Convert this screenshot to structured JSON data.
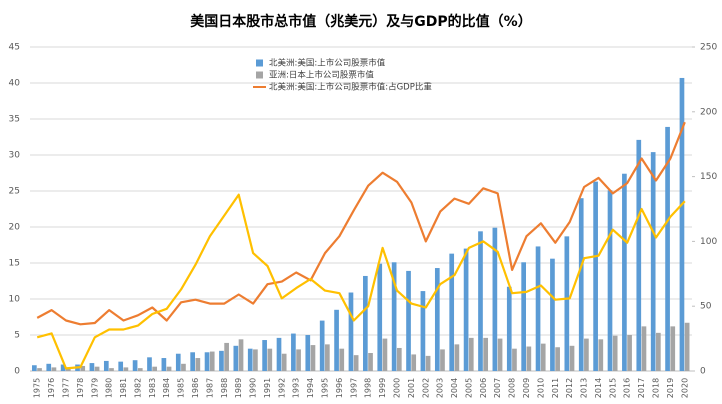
{
  "chart_data": {
    "type": "bar-line",
    "title": "美国日本股市总市值（兆美元）及与GDP的比值（%）",
    "categories": [
      "1975",
      "1976",
      "1977",
      "1978",
      "1979",
      "1980",
      "1981",
      "1982",
      "1983",
      "1984",
      "1985",
      "1986",
      "1987",
      "1988",
      "1989",
      "1990",
      "1991",
      "1992",
      "1993",
      "1994",
      "1995",
      "1996",
      "1997",
      "1998",
      "1999",
      "2000",
      "2001",
      "2002",
      "2003",
      "2004",
      "2005",
      "2006",
      "2007",
      "2008",
      "2009",
      "2010",
      "2011",
      "2012",
      "2013",
      "2014",
      "2015",
      "2016",
      "2017",
      "2018",
      "2019",
      "2020"
    ],
    "series": [
      {
        "name": "北美洲:美国:上市公司股票市值",
        "type": "bar",
        "color": "#5b9bd5",
        "values": [
          0.8,
          1.0,
          0.9,
          0.9,
          1.1,
          1.4,
          1.3,
          1.5,
          1.9,
          1.8,
          2.4,
          2.6,
          2.6,
          2.8,
          3.5,
          3.1,
          4.3,
          4.6,
          5.2,
          5.0,
          7.0,
          8.5,
          10.9,
          13.2,
          14.9,
          15.1,
          13.9,
          11.1,
          14.3,
          16.3,
          17.0,
          19.4,
          19.9,
          11.7,
          15.1,
          17.3,
          15.6,
          18.7,
          24.0,
          26.3,
          25.1,
          27.4,
          32.1,
          30.4,
          33.9,
          40.7
        ]
      },
      {
        "name": "亚洲:日本上市公司股票市值",
        "type": "bar",
        "color": "#a5a5a5",
        "values": [
          0.4,
          0.5,
          0.5,
          0.7,
          0.6,
          0.4,
          0.5,
          0.4,
          0.6,
          0.6,
          1.0,
          1.8,
          2.7,
          3.9,
          4.4,
          3.0,
          3.1,
          2.4,
          3.0,
          3.6,
          3.7,
          3.1,
          2.2,
          2.5,
          4.5,
          3.2,
          2.3,
          2.1,
          3.0,
          3.7,
          4.6,
          4.6,
          4.5,
          3.1,
          3.4,
          3.8,
          3.3,
          3.5,
          4.5,
          4.4,
          4.9,
          5.0,
          6.2,
          5.3,
          6.2,
          6.7
        ]
      },
      {
        "name": "北美洲:美国:上市公司股票市值:占GDP比重",
        "type": "line",
        "axis": "y2",
        "color": "#ed7d31",
        "values": [
          41,
          47,
          39,
          36,
          37,
          47,
          39,
          43,
          49,
          39,
          53,
          55,
          52,
          52,
          59,
          52,
          67,
          69,
          76,
          70,
          91,
          104,
          124,
          143,
          153,
          146,
          130,
          100,
          123,
          133,
          129,
          141,
          137,
          78,
          104,
          114,
          99,
          115,
          142,
          149,
          137,
          145,
          164,
          147,
          164,
          192
        ]
      },
      {
        "type": "line",
        "axis": "y2",
        "color": "#ffc000",
        "values": [
          26,
          29,
          2,
          3,
          26,
          32,
          32,
          35,
          44,
          48,
          63,
          82,
          104,
          120,
          136,
          91,
          81,
          56,
          64,
          71,
          62,
          60,
          39,
          50,
          95,
          62,
          52,
          49,
          67,
          74,
          95,
          100,
          92,
          60,
          61,
          66,
          55,
          56,
          87,
          89,
          109,
          99,
          125,
          103,
          119,
          131
        ]
      }
    ],
    "ylim": [
      0,
      45
    ],
    "yticks": [
      0,
      5,
      10,
      15,
      20,
      25,
      30,
      35,
      40,
      45
    ],
    "y2lim": [
      0,
      250
    ],
    "y2ticks": [
      0,
      50,
      100,
      150,
      200,
      250
    ],
    "grid": true,
    "legend": "top"
  }
}
